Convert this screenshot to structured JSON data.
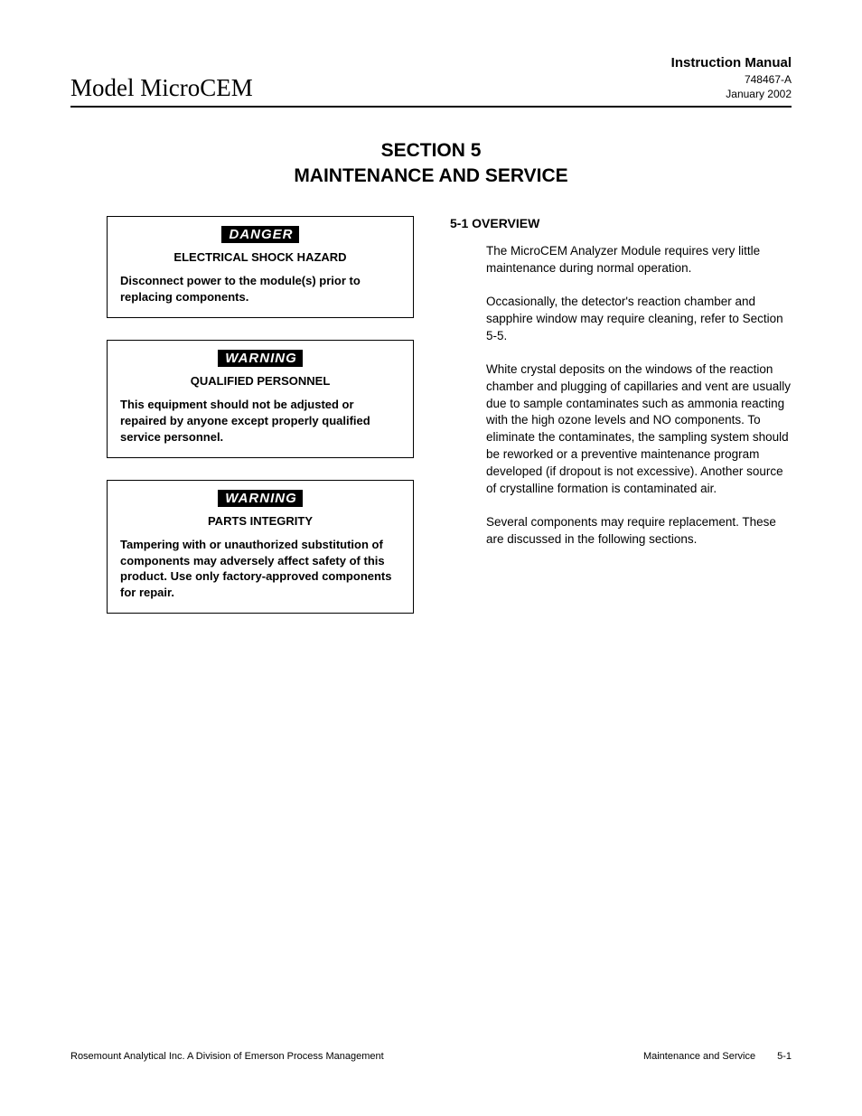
{
  "header": {
    "model": "Model MicroCEM",
    "manual_title": "Instruction Manual",
    "doc_number": "748467-A",
    "date": "January 2002"
  },
  "section_title": {
    "line1": "SECTION 5",
    "line2": "MAINTENANCE AND SERVICE"
  },
  "notices": [
    {
      "label": "DANGER",
      "heading": "ELECTRICAL SHOCK HAZARD",
      "body": "Disconnect power to the module(s) prior to replacing components."
    },
    {
      "label": "WARNING",
      "heading": "QUALIFIED PERSONNEL",
      "body": "This equipment should not be adjusted or repaired by anyone except properly qualified service personnel."
    },
    {
      "label": "WARNING",
      "heading": "PARTS INTEGRITY",
      "body": "Tampering with or unauthorized substitution of components may adversely affect safety of this product. Use only factory-approved components for repair."
    }
  ],
  "overview": {
    "heading": "5-1  OVERVIEW",
    "paragraphs": [
      "The MicroCEM Analyzer Module requires very little maintenance during normal operation.",
      "Occasionally, the detector's reaction chamber and sapphire window may require cleaning, refer to Section 5-5.",
      "White crystal deposits on the windows of the reaction chamber and plugging of capillaries and vent are usually due to sample contaminates such as ammonia reacting with the high ozone levels and NO components. To eliminate the contaminates, the sampling system should be reworked or a preventive maintenance program developed (if dropout is not excessive). Another source of crystalline formation is contaminated air.",
      "Several components may require replacement. These are discussed in the following sections."
    ]
  },
  "footer": {
    "left": "Rosemount Analytical Inc.    A Division of Emerson Process Management",
    "right_section": "Maintenance and Service",
    "page_number": "5-1"
  },
  "colors": {
    "text": "#000000",
    "background": "#ffffff",
    "label_bg": "#000000",
    "label_fg": "#ffffff",
    "rule": "#000000"
  },
  "typography": {
    "body_font": "Arial, Helvetica, sans-serif",
    "model_font": "Times New Roman, Times, serif",
    "body_size_pt": 10,
    "heading_size_pt": 16,
    "model_size_pt": 20
  }
}
